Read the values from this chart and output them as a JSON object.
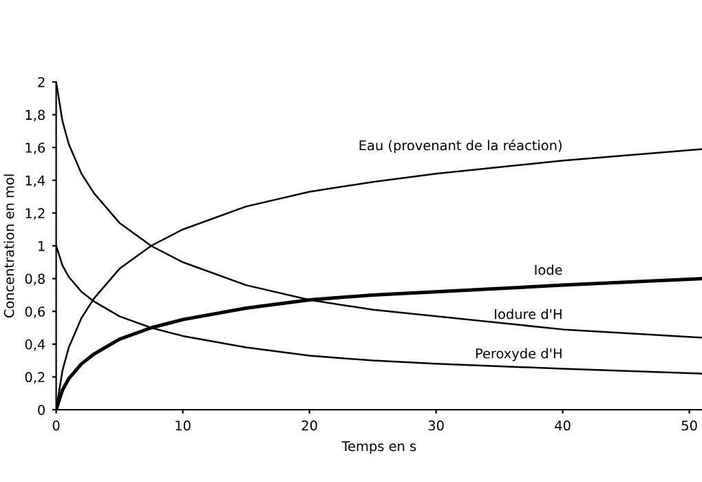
{
  "chart_data": {
    "type": "line",
    "xlabel": "Temps en s",
    "ylabel": "Concentration en mol",
    "xlim": [
      0,
      51
    ],
    "ylim": [
      0,
      2
    ],
    "xticks": [
      0,
      10,
      20,
      30,
      40,
      50
    ],
    "yticks": [
      0,
      {
        "value": 0.2,
        "label": "0,2"
      },
      {
        "value": 0.4,
        "label": "0,4"
      },
      {
        "value": 0.6,
        "label": "0,6"
      },
      {
        "value": 0.8,
        "label": "0,8"
      },
      1,
      {
        "value": 1.2,
        "label": "1,2"
      },
      {
        "value": 1.4,
        "label": "1,4"
      },
      {
        "value": 1.6,
        "label": "1,6"
      },
      {
        "value": 1.8,
        "label": "1,8"
      },
      2
    ],
    "grid": false,
    "legend": false,
    "marker": "none",
    "line_style": "solid",
    "x": [
      0,
      0.5,
      1,
      2,
      3,
      5,
      7.5,
      10,
      15,
      20,
      25,
      30,
      40,
      51
    ],
    "series": [
      {
        "name": "Eau (provenant de la réaction)",
        "color": "#000000",
        "values": [
          0,
          0.24,
          0.38,
          0.56,
          0.68,
          0.86,
          1.0,
          1.1,
          1.24,
          1.33,
          1.39,
          1.44,
          1.52,
          1.59
        ]
      },
      {
        "name": "Iode",
        "color": "#000000",
        "values": [
          0,
          0.12,
          0.19,
          0.28,
          0.34,
          0.43,
          0.5,
          0.55,
          0.62,
          0.67,
          0.7,
          0.72,
          0.76,
          0.8
        ]
      },
      {
        "name": "Iodure d'H",
        "color": "#000000",
        "values": [
          2,
          1.76,
          1.62,
          1.44,
          1.32,
          1.14,
          1.0,
          0.9,
          0.76,
          0.67,
          0.61,
          0.57,
          0.49,
          0.44
        ]
      },
      {
        "name": "Peroxyde d'H",
        "color": "#000000",
        "values": [
          1,
          0.88,
          0.81,
          0.72,
          0.66,
          0.57,
          0.5,
          0.45,
          0.38,
          0.33,
          0.3,
          0.28,
          0.25,
          0.22
        ]
      }
    ]
  }
}
